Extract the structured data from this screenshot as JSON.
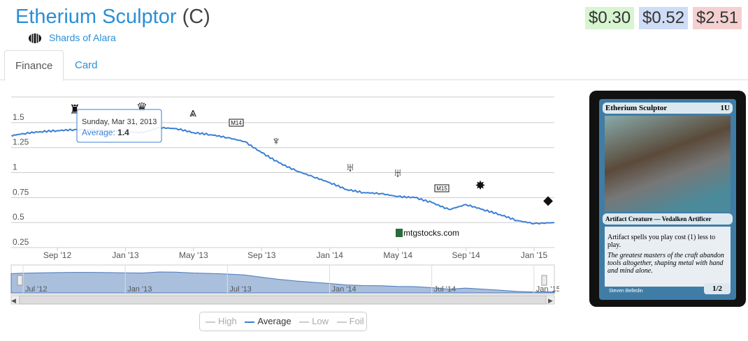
{
  "header": {
    "card_name": "Etherium Sculptor",
    "rarity": "(C)",
    "set_name": "Shards of Alara",
    "prices": [
      {
        "value": "$0.30",
        "color": "#d6f5d0"
      },
      {
        "value": "$0.52",
        "color": "#cfdcf5"
      },
      {
        "value": "$2.51",
        "color": "#f5d0d0"
      }
    ]
  },
  "tabs": [
    {
      "label": "Finance",
      "active": true
    },
    {
      "label": "Card",
      "active": false
    }
  ],
  "tooltip": {
    "date": "Sunday, Mar 31, 2013",
    "label": "Average:",
    "value": "1.4"
  },
  "watermark": "mtgstocks.com",
  "card": {
    "name": "Etherium Sculptor",
    "cost": "1U",
    "type": "Artifact Creature — Vedalken Artificer",
    "rules": "Artifact spells you play cost (1) less to play.",
    "flavor": "The greatest masters of the craft abandon tools altogether, shaping metal with hand and mind alone.",
    "pt": "1/2",
    "artist": "Steven Belledin"
  },
  "legend": [
    {
      "label": "High",
      "active": false
    },
    {
      "label": "Average",
      "active": true
    },
    {
      "label": "Low",
      "active": false
    },
    {
      "label": "Foil",
      "active": false
    }
  ],
  "chart_data": {
    "type": "line",
    "ylabel": "",
    "xlabel": "",
    "ylim": [
      0.25,
      1.75
    ],
    "yticks": [
      "0.25",
      "0.5",
      "0.75",
      "1",
      "1.25",
      "1.5"
    ],
    "xticks": [
      {
        "label": "Sep '12",
        "m": 2
      },
      {
        "label": "Jan '13",
        "m": 6
      },
      {
        "label": "May '13",
        "m": 10
      },
      {
        "label": "Sep '13",
        "m": 14
      },
      {
        "label": "Jan '14",
        "m": 18
      },
      {
        "label": "May '14",
        "m": 22
      },
      {
        "label": "Sep '14",
        "m": 26
      },
      {
        "label": "Jan '15",
        "m": 30
      }
    ],
    "nav_ticks": [
      {
        "label": "Jul '12",
        "m": 0
      },
      {
        "label": "Jan '13",
        "m": 6
      },
      {
        "label": "Jul '13",
        "m": 12
      },
      {
        "label": "Jan '14",
        "m": 18
      },
      {
        "label": "Jul '14",
        "m": 24
      },
      {
        "label": "Jan '15",
        "m": 30
      }
    ],
    "series": [
      {
        "name": "Average",
        "color": "#3a7fd5",
        "m": [
          -0.7,
          0,
          1,
          2,
          3,
          4,
          5,
          6,
          7,
          8,
          9,
          10,
          11,
          12,
          13,
          14,
          15,
          16,
          17,
          18,
          19,
          20,
          21,
          22,
          23,
          24,
          25,
          26,
          27,
          28,
          29,
          30,
          31.2
        ],
        "values": [
          1.37,
          1.39,
          1.41,
          1.42,
          1.43,
          1.43,
          1.42,
          1.41,
          1.4,
          1.45,
          1.44,
          1.4,
          1.38,
          1.35,
          1.31,
          1.2,
          1.1,
          1.02,
          0.96,
          0.9,
          0.83,
          0.8,
          0.79,
          0.76,
          0.75,
          0.7,
          0.63,
          0.68,
          0.63,
          0.58,
          0.52,
          0.49,
          0.5
        ]
      }
    ],
    "set_releases": [
      "Return to Ravnica",
      "Gatecrash",
      "Dragon's Maze",
      "Magic 2014",
      "Theros",
      "Born of the Gods",
      "Journey into Nyx",
      "Magic 2015",
      "Khans of Tarkir",
      "Fate Reforged"
    ]
  }
}
